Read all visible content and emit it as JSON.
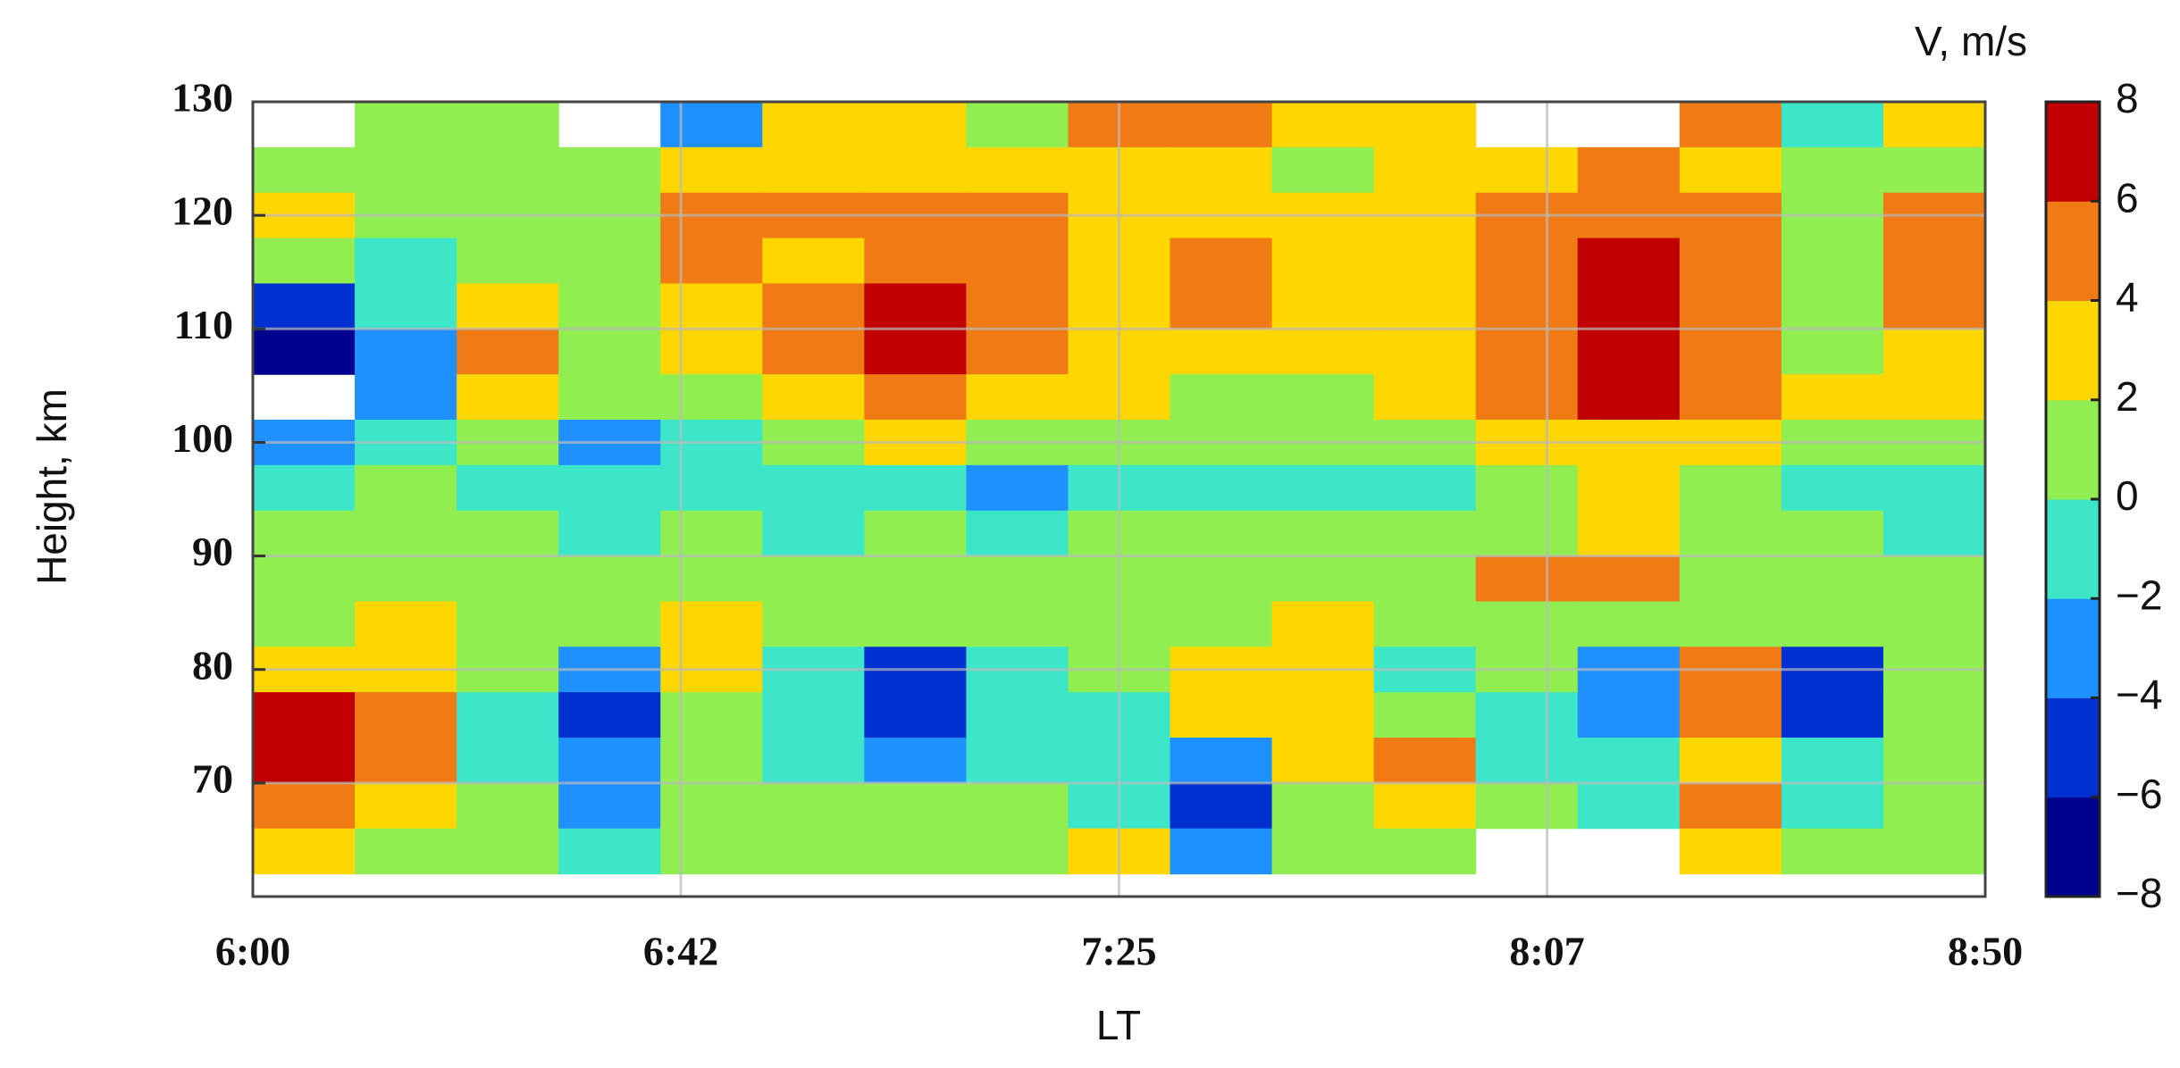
{
  "chart_data": {
    "type": "heatmap",
    "title": "V, m/s",
    "xlabel": "LT",
    "ylabel": "Height, km",
    "xlim": [
      360,
      530
    ],
    "ylim": [
      60,
      130
    ],
    "clim": [
      -8,
      8
    ],
    "xticks": [
      {
        "value": 360,
        "label": "6:00"
      },
      {
        "value": 402,
        "label": "6:42"
      },
      {
        "value": 445,
        "label": "7:25"
      },
      {
        "value": 487,
        "label": "8:07"
      },
      {
        "value": 530,
        "label": "8:50"
      }
    ],
    "yticks": [
      70,
      80,
      90,
      100,
      110,
      120,
      130
    ],
    "cticks": [
      {
        "value": -8,
        "label": "−8"
      },
      {
        "value": -6,
        "label": "−6"
      },
      {
        "value": -4,
        "label": "−4"
      },
      {
        "value": -2,
        "label": "−2"
      },
      0,
      2,
      4,
      6,
      8
    ],
    "levels": [
      -8,
      -6,
      -4,
      -2,
      0,
      2,
      4,
      6,
      8
    ],
    "colors": [
      "#00008f",
      "#0030d0",
      "#1e90ff",
      "#3ce6c8",
      "#90ee50",
      "#ffd700",
      "#f07a14",
      "#c00000"
    ],
    "grid": true,
    "x": [
      365,
      375,
      385,
      395,
      405,
      415,
      425,
      435,
      445,
      455,
      465,
      475,
      485,
      495,
      505,
      515,
      525
    ],
    "y": [
      128,
      124,
      120,
      116,
      112,
      108,
      104,
      100,
      96,
      92,
      88,
      84,
      80,
      76,
      72,
      68,
      64
    ],
    "z": [
      [
        null,
        0,
        0,
        null,
        -4,
        2,
        2,
        0,
        4,
        4,
        2,
        2,
        null,
        null,
        4,
        -2,
        2
      ],
      [
        0,
        0,
        0,
        0,
        2,
        2,
        2,
        2,
        2,
        2,
        0,
        2,
        2,
        4,
        2,
        0,
        0
      ],
      [
        2,
        0,
        0,
        0,
        4,
        4,
        4,
        4,
        2,
        2,
        2,
        2,
        4,
        4,
        4,
        0,
        4
      ],
      [
        0,
        -2,
        0,
        0,
        4,
        2,
        4,
        4,
        2,
        4,
        2,
        2,
        4,
        6,
        4,
        0,
        4
      ],
      [
        -6,
        -2,
        2,
        0,
        2,
        4,
        6,
        4,
        2,
        4,
        2,
        2,
        4,
        6,
        4,
        0,
        4
      ],
      [
        -8,
        -4,
        4,
        0,
        2,
        4,
        6,
        4,
        2,
        2,
        2,
        2,
        4,
        6,
        4,
        0,
        2
      ],
      [
        null,
        -4,
        2,
        0,
        0,
        2,
        4,
        2,
        2,
        0,
        0,
        2,
        4,
        6,
        4,
        2,
        2
      ],
      [
        -4,
        -2,
        0,
        -4,
        -2,
        0,
        2,
        0,
        0,
        0,
        0,
        0,
        2,
        2,
        2,
        0,
        0
      ],
      [
        -2,
        0,
        -2,
        -2,
        -2,
        -2,
        -2,
        -4,
        -2,
        -2,
        -2,
        -2,
        0,
        2,
        0,
        -2,
        -2
      ],
      [
        0,
        0,
        0,
        -2,
        0,
        -2,
        0,
        -2,
        0,
        0,
        0,
        0,
        0,
        2,
        0,
        0,
        -2
      ],
      [
        0,
        0,
        0,
        0,
        0,
        0,
        0,
        0,
        0,
        0,
        0,
        0,
        4,
        4,
        0,
        0,
        0
      ],
      [
        0,
        2,
        0,
        0,
        2,
        0,
        0,
        0,
        0,
        0,
        2,
        0,
        0,
        0,
        0,
        0,
        0
      ],
      [
        2,
        2,
        0,
        -4,
        2,
        -2,
        -6,
        -2,
        0,
        2,
        2,
        -2,
        0,
        -4,
        4,
        -6,
        0
      ],
      [
        6,
        4,
        -2,
        -6,
        0,
        -2,
        -6,
        -2,
        -2,
        2,
        2,
        0,
        -2,
        -4,
        4,
        -6,
        0
      ],
      [
        6,
        4,
        -2,
        -4,
        0,
        -2,
        -4,
        -2,
        -2,
        -4,
        2,
        4,
        -2,
        -2,
        2,
        -2,
        0
      ],
      [
        4,
        2,
        0,
        -4,
        0,
        0,
        0,
        0,
        -2,
        -6,
        0,
        2,
        0,
        -2,
        4,
        -2,
        0
      ],
      [
        2,
        0,
        0,
        -2,
        0,
        0,
        0,
        0,
        2,
        -4,
        0,
        0,
        null,
        null,
        2,
        0,
        0
      ]
    ]
  }
}
